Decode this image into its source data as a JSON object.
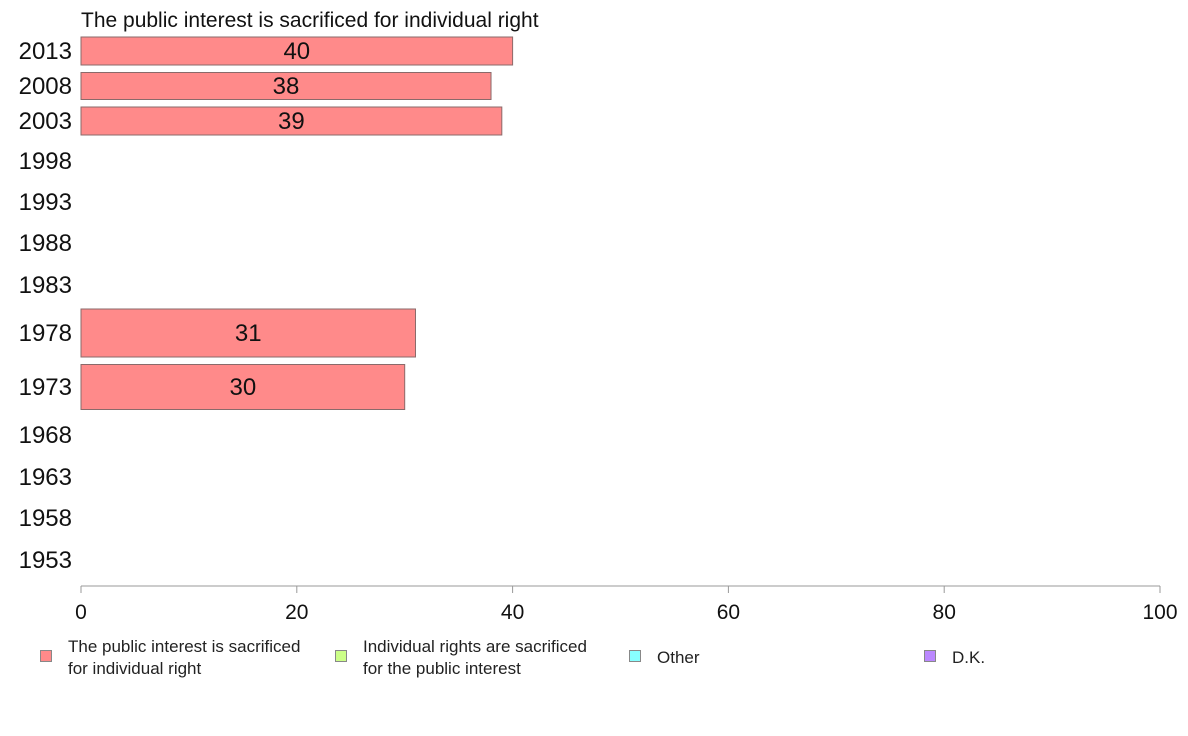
{
  "chart_data": {
    "type": "bar",
    "orientation": "horizontal",
    "title": "The public interest is sacrificed for individual right",
    "categories": [
      "2013",
      "2008",
      "2003",
      "1998",
      "1993",
      "1988",
      "1983",
      "1978",
      "1973",
      "1968",
      "1963",
      "1958",
      "1953"
    ],
    "series": [
      {
        "name": "The public interest is sacrificed for individual right",
        "color": "#ff8a8a",
        "values": [
          40,
          38,
          39,
          null,
          null,
          null,
          null,
          31,
          30,
          null,
          null,
          null,
          null
        ],
        "labels": [
          "40",
          "38",
          "39",
          "",
          "",
          "",
          "",
          "31",
          "30",
          "",
          "",
          "",
          ""
        ]
      }
    ],
    "xlim": [
      0,
      100
    ],
    "xticks": [
      "0",
      "20",
      "40",
      "60",
      "80",
      "100"
    ],
    "legend": {
      "placement": "bottom",
      "items": [
        {
          "label": "The public interest is sacrificed\nfor individual right",
          "color": "#ff8a8a"
        },
        {
          "label": "Individual rights are sacrificed\nfor the public interest",
          "color": "#ccff88"
        },
        {
          "label": "Other",
          "color": "#88ffff"
        },
        {
          "label": "D.K.",
          "color": "#bb88ff"
        }
      ]
    }
  }
}
